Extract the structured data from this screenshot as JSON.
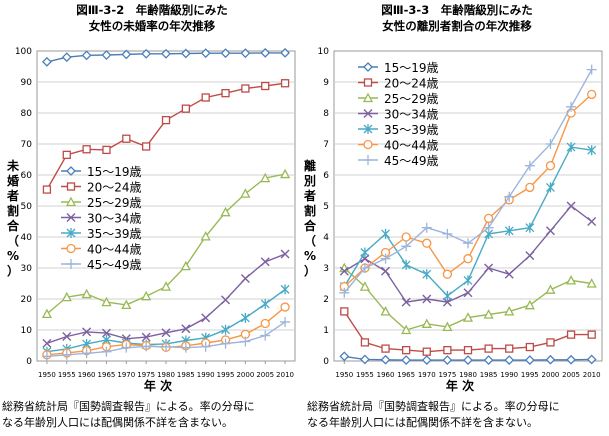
{
  "left_panel": {
    "title_line1": "図Ⅲ-3-2　年齢階級別にみた",
    "title_line2": "女性の未婚率の年次推移",
    "note_line1": "総務省統計局『国勢調査報告』による。率の分母に",
    "note_line2": "なる年齢別人口には配偶関係不詳を含まない。"
  },
  "right_panel": {
    "title_line1": "図Ⅲ-3-3　年齢階級別にみた",
    "title_line2": "女性の離別者割合の年次推移",
    "note_line1": "総務省統計局『国勢調査報告』による。率の分母に",
    "note_line2": "なる年齢別人口には配偶関係不詳を含まない。"
  },
  "chart_data": [
    {
      "type": "line",
      "title": "年齢階級別にみた女性の未婚率の年次推移",
      "xlabel": "年 次",
      "ylabel": "未婚者割合（%）",
      "ylim": [
        0,
        100
      ],
      "ytick_step": 10,
      "grid": true,
      "legend_position": "center-left",
      "categories": [
        "1950",
        "1955",
        "1960",
        "1965",
        "1970",
        "1975",
        "1980",
        "1985",
        "1990",
        "1995",
        "2000",
        "2005",
        "2010"
      ],
      "series": [
        {
          "name": "15～19歳",
          "color": "#4a7ebb",
          "marker": "diamond",
          "values": [
            96.5,
            98.0,
            98.6,
            98.7,
            98.9,
            99.1,
            99.1,
            99.2,
            99.3,
            99.3,
            99.3,
            99.4,
            99.4
          ]
        },
        {
          "name": "20～24歳",
          "color": "#be4b48",
          "marker": "square",
          "values": [
            55.3,
            66.5,
            68.3,
            68.1,
            71.7,
            69.2,
            77.7,
            81.4,
            85.0,
            86.4,
            87.9,
            88.7,
            89.6
          ]
        },
        {
          "name": "25～29歳",
          "color": "#98b954",
          "marker": "triangle",
          "values": [
            15.2,
            20.6,
            21.6,
            19.0,
            18.1,
            20.9,
            24.0,
            30.6,
            40.2,
            48.0,
            54.0,
            59.0,
            60.3
          ]
        },
        {
          "name": "30～34歳",
          "color": "#7d60a0",
          "marker": "x",
          "values": [
            5.7,
            7.9,
            9.4,
            9.0,
            7.2,
            7.7,
            9.1,
            10.4,
            13.9,
            19.7,
            26.6,
            32.0,
            34.5
          ]
        },
        {
          "name": "35～39歳",
          "color": "#46aac5",
          "marker": "star",
          "values": [
            3.0,
            3.9,
            5.5,
            6.8,
            5.8,
            5.3,
            5.5,
            6.6,
            7.5,
            10.1,
            13.9,
            18.4,
            23.1
          ]
        },
        {
          "name": "40～44歳",
          "color": "#f79646",
          "marker": "circle",
          "values": [
            2.0,
            2.6,
            3.3,
            4.6,
            5.3,
            5.0,
            4.4,
            4.9,
            5.8,
            6.8,
            8.6,
            12.1,
            17.4
          ]
        },
        {
          "name": "45～49歳",
          "color": "#9cb5dc",
          "marker": "plus",
          "values": [
            1.5,
            2.0,
            2.5,
            3.0,
            4.3,
            4.7,
            4.6,
            4.3,
            4.6,
            5.6,
            6.3,
            8.2,
            12.6
          ]
        }
      ]
    },
    {
      "type": "line",
      "title": "年齢階級別にみた女性の離別者割合の年次推移",
      "xlabel": "年 次",
      "ylabel": "離別者割合（%）",
      "ylim": [
        0,
        10
      ],
      "ytick_step": 1,
      "grid": true,
      "legend_position": "top-left",
      "categories": [
        "1950",
        "1955",
        "1960",
        "1965",
        "1970",
        "1975",
        "1980",
        "1985",
        "1990",
        "1995",
        "2000",
        "2005",
        "2010"
      ],
      "series": [
        {
          "name": "15～19歳",
          "color": "#4a7ebb",
          "marker": "diamond",
          "values": [
            0.15,
            0.05,
            0.04,
            0.03,
            0.03,
            0.03,
            0.03,
            0.03,
            0.03,
            0.03,
            0.04,
            0.04,
            0.05
          ]
        },
        {
          "name": "20～24歳",
          "color": "#be4b48",
          "marker": "square",
          "values": [
            1.6,
            0.6,
            0.4,
            0.35,
            0.3,
            0.35,
            0.35,
            0.4,
            0.4,
            0.45,
            0.6,
            0.85,
            0.85
          ]
        },
        {
          "name": "25～29歳",
          "color": "#98b954",
          "marker": "triangle",
          "values": [
            3.0,
            2.4,
            1.6,
            1.0,
            1.2,
            1.1,
            1.4,
            1.5,
            1.6,
            1.8,
            2.3,
            2.6,
            2.5
          ]
        },
        {
          "name": "30～34歳",
          "color": "#7d60a0",
          "marker": "x",
          "values": [
            2.9,
            3.3,
            2.9,
            1.9,
            2.0,
            1.9,
            2.2,
            3.0,
            2.8,
            3.4,
            4.2,
            5.0,
            4.5
          ]
        },
        {
          "name": "35～39歳",
          "color": "#46aac5",
          "marker": "star",
          "values": [
            2.4,
            3.5,
            4.1,
            3.1,
            2.8,
            2.1,
            2.6,
            4.1,
            4.2,
            4.3,
            5.6,
            6.9,
            6.8
          ]
        },
        {
          "name": "40～44歳",
          "color": "#f79646",
          "marker": "circle",
          "values": [
            2.4,
            3.0,
            3.5,
            4.0,
            3.8,
            2.8,
            3.3,
            4.6,
            5.2,
            5.6,
            6.3,
            8.0,
            8.6
          ]
        },
        {
          "name": "45～49歳",
          "color": "#9cb5dc",
          "marker": "plus",
          "values": [
            2.2,
            3.0,
            3.3,
            3.7,
            4.3,
            4.1,
            3.8,
            4.3,
            5.3,
            6.3,
            7.0,
            8.2,
            9.4
          ]
        }
      ]
    }
  ]
}
